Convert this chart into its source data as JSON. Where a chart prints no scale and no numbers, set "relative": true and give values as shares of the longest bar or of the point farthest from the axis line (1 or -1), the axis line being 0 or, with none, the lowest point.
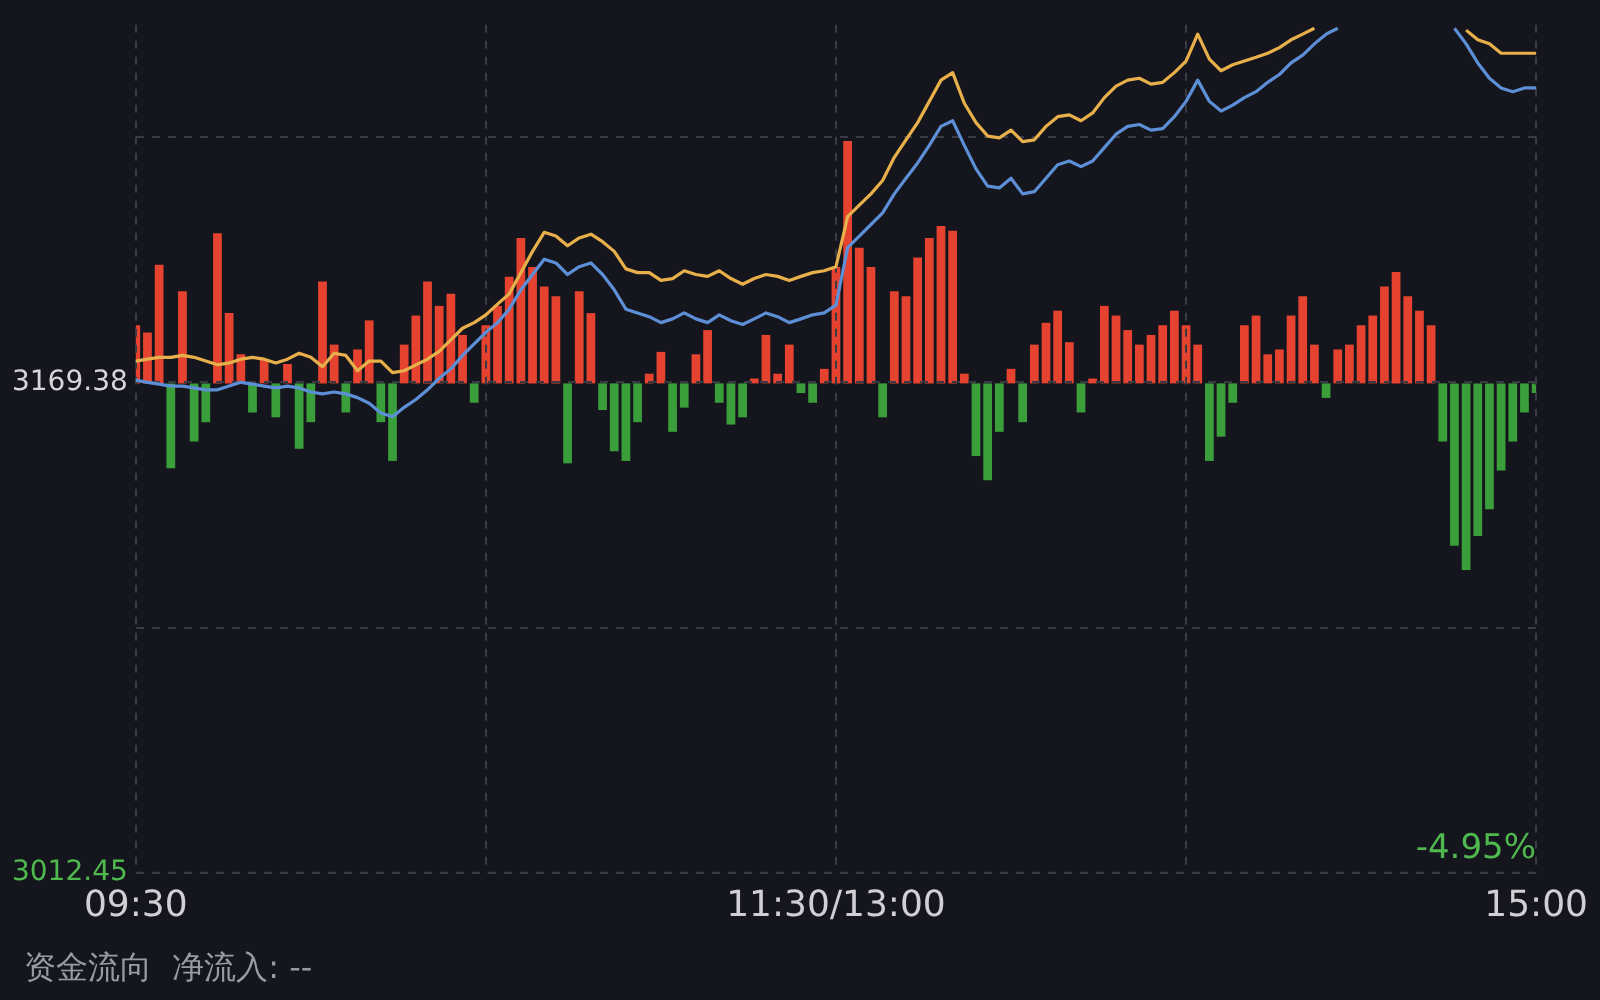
{
  "chart_data": [
    {
      "type": "line",
      "marker": "none",
      "grid": true,
      "categories": [
        "09:30",
        null,
        null,
        null,
        null,
        null,
        null,
        null,
        null,
        null,
        null,
        null,
        null,
        null,
        null,
        null,
        null,
        null,
        null,
        null,
        null,
        null,
        null,
        null,
        null,
        null,
        null,
        null,
        null,
        null,
        null,
        null,
        null,
        null,
        null,
        null,
        null,
        null,
        null,
        null,
        null,
        null,
        null,
        null,
        null,
        null,
        null,
        null,
        null,
        null,
        null,
        null,
        null,
        null,
        null,
        null,
        null,
        null,
        null,
        null,
        "11:30/13:00",
        null,
        null,
        null,
        null,
        null,
        null,
        null,
        null,
        null,
        null,
        null,
        null,
        null,
        null,
        null,
        null,
        null,
        null,
        null,
        null,
        null,
        null,
        null,
        null,
        null,
        null,
        null,
        null,
        null,
        null,
        null,
        null,
        null,
        null,
        null,
        null,
        null,
        null,
        null,
        null,
        null,
        null,
        null,
        null,
        null,
        null,
        null,
        null,
        null,
        null,
        null,
        null,
        null,
        null,
        null,
        null,
        null,
        null,
        null,
        "15:00"
      ],
      "ylim": [
        3012.45,
        3283.8
      ],
      "yticks": [
        3012.45,
        {
          "value": 3090.915,
          "label": null
        },
        3169.38,
        {
          "value": 3247.845,
          "label": null
        }
      ],
      "annotations": [
        "-4.95%",
        "资金流向  净流入: --"
      ],
      "series": [
        {
          "color": "#e8b04a",
          "values": [
            3176.2,
            3176.8,
            3177.4,
            3177.4,
            3178.0,
            3177.4,
            3176.2,
            3175.0,
            3175.6,
            3176.8,
            3177.4,
            3176.8,
            3175.6,
            3176.8,
            3178.7,
            3177.4,
            3174.4,
            3178.7,
            3178.0,
            3173.1,
            3176.2,
            3176.2,
            3172.5,
            3173.1,
            3175.0,
            3176.8,
            3179.3,
            3183.0,
            3186.7,
            3188.5,
            3191.0,
            3194.4,
            3197.7,
            3204.5,
            3211.3,
            3217.4,
            3216.2,
            3213.1,
            3215.6,
            3216.8,
            3214.4,
            3211.3,
            3205.7,
            3204.5,
            3204.5,
            3202.0,
            3202.6,
            3205.1,
            3203.9,
            3203.3,
            3205.1,
            3202.6,
            3200.8,
            3202.6,
            3203.9,
            3203.3,
            3202.0,
            3203.3,
            3204.5,
            3205.1,
            3206.4,
            3222.4,
            3226.1,
            3229.7,
            3234.0,
            3241.4,
            3247.0,
            3252.5,
            3259.3,
            3266.1,
            3268.5,
            3258.7,
            3252.5,
            3248.2,
            3247.6,
            3250.1,
            3246.4,
            3247.0,
            3251.3,
            3254.4,
            3255.0,
            3253.1,
            3255.6,
            3260.5,
            3264.2,
            3266.1,
            3266.7,
            3264.8,
            3265.4,
            3268.5,
            3272.2,
            3280.8,
            3272.8,
            3269.1,
            3271.0,
            3272.2,
            3273.4,
            3274.7,
            3276.5,
            3279.0,
            3280.8,
            3282.7,
            null,
            null,
            null,
            null,
            null,
            null,
            null,
            null,
            null,
            null,
            null,
            null,
            3282.1,
            3279.0,
            3277.7,
            3274.7,
            3274.7,
            3274.7,
            3274.7
          ]
        },
        {
          "color": "#5d8fd6",
          "values": [
            3170.1,
            3169.4,
            3168.8,
            3168.2,
            3168.2,
            3167.6,
            3167.0,
            3167.0,
            3168.2,
            3169.4,
            3168.8,
            3168.2,
            3167.6,
            3168.2,
            3167.6,
            3166.3,
            3165.7,
            3166.3,
            3165.7,
            3164.5,
            3162.7,
            3159.6,
            3158.4,
            3161.4,
            3163.9,
            3167.0,
            3170.7,
            3173.7,
            3178.0,
            3181.7,
            3185.4,
            3188.5,
            3192.8,
            3199.0,
            3203.9,
            3208.8,
            3207.6,
            3203.9,
            3206.4,
            3207.6,
            3203.9,
            3199.0,
            3192.8,
            3191.6,
            3190.4,
            3188.5,
            3189.7,
            3191.6,
            3189.7,
            3188.5,
            3191.0,
            3189.1,
            3187.9,
            3189.7,
            3191.6,
            3190.4,
            3188.5,
            3189.7,
            3191.0,
            3191.6,
            3194.1,
            3212.5,
            3216.2,
            3219.9,
            3223.6,
            3229.7,
            3234.7,
            3239.6,
            3245.2,
            3251.3,
            3253.1,
            3245.2,
            3237.7,
            3232.2,
            3231.6,
            3234.7,
            3229.7,
            3230.4,
            3234.7,
            3239.0,
            3240.2,
            3238.4,
            3240.2,
            3244.5,
            3248.8,
            3251.3,
            3251.9,
            3250.1,
            3250.6,
            3254.4,
            3259.3,
            3266.1,
            3259.3,
            3256.2,
            3258.1,
            3260.5,
            3262.4,
            3265.4,
            3267.9,
            3271.6,
            3274.1,
            3277.7,
            3280.8,
            3282.7,
            null,
            null,
            null,
            null,
            null,
            null,
            null,
            null,
            null,
            3282.7,
            3277.7,
            3271.6,
            3266.7,
            3263.6,
            3262.4,
            3263.6,
            3263.6
          ]
        }
      ]
    },
    {
      "type": "bar",
      "relative": true,
      "categories": [
        null,
        null,
        null,
        null,
        null,
        null,
        null,
        null,
        null,
        null,
        null,
        null,
        null,
        null,
        null,
        null,
        null,
        null,
        null,
        null,
        null,
        null,
        null,
        null,
        null,
        null,
        null,
        null,
        null,
        null,
        null,
        null,
        null,
        null,
        null,
        null,
        null,
        null,
        null,
        null,
        null,
        null,
        null,
        null,
        null,
        null,
        null,
        null,
        null,
        null,
        null,
        null,
        null,
        null,
        null,
        null,
        null,
        null,
        null,
        null,
        null,
        null,
        null,
        null,
        null,
        null,
        null,
        null,
        null,
        null,
        null,
        null,
        null,
        null,
        null,
        null,
        null,
        null,
        null,
        null,
        null,
        null,
        null,
        null,
        null,
        null,
        null,
        null,
        null,
        null,
        null,
        null,
        null,
        null,
        null,
        null,
        null,
        null,
        null,
        null,
        null,
        null,
        null,
        null,
        null,
        null,
        null,
        null,
        null,
        null,
        null,
        null,
        null,
        null,
        null,
        null,
        null,
        null,
        null,
        null,
        null
      ],
      "series": [
        {
          "color": "#e5432f",
          "values": [
            0.24,
            0.21,
            0.49,
            null,
            0.38,
            null,
            null,
            0.62,
            0.29,
            0.12,
            null,
            0.1,
            null,
            0.08,
            null,
            null,
            0.42,
            0.16,
            null,
            0.14,
            0.26,
            null,
            null,
            0.16,
            0.28,
            0.42,
            0.32,
            0.37,
            0.2,
            null,
            0.24,
            0.32,
            0.44,
            0.6,
            0.48,
            0.4,
            0.36,
            null,
            0.38,
            0.29,
            null,
            null,
            null,
            null,
            0.04,
            0.13,
            null,
            null,
            0.12,
            0.22,
            null,
            null,
            null,
            0.02,
            0.2,
            0.04,
            0.16,
            null,
            null,
            0.06,
            0.48,
            1,
            0.56,
            0.48,
            null,
            0.38,
            0.36,
            0.52,
            0.6,
            0.65,
            0.63,
            0.04,
            null,
            null,
            null,
            0.06,
            null,
            0.16,
            0.25,
            0.3,
            0.17,
            null,
            0.02,
            0.32,
            0.28,
            0.22,
            0.16,
            0.2,
            0.24,
            0.3,
            0.24,
            0.16,
            null,
            null,
            null,
            0.24,
            0.28,
            0.12,
            0.14,
            0.28,
            0.36,
            0.16,
            null,
            0.14,
            0.16,
            0.24,
            0.28,
            0.4,
            0.46,
            0.36,
            0.3,
            0.24,
            null,
            null,
            null,
            null,
            null,
            null,
            null,
            null,
            null
          ]
        },
        {
          "color": "#3a9e3a",
          "values": [
            null,
            null,
            null,
            -0.35,
            null,
            -0.24,
            -0.16,
            null,
            null,
            null,
            -0.12,
            null,
            -0.14,
            null,
            -0.27,
            -0.16,
            null,
            null,
            -0.12,
            null,
            null,
            -0.16,
            -0.32,
            null,
            null,
            null,
            null,
            null,
            null,
            -0.08,
            null,
            null,
            null,
            null,
            null,
            null,
            null,
            -0.33,
            null,
            null,
            -0.11,
            -0.28,
            -0.32,
            -0.16,
            null,
            null,
            -0.2,
            -0.1,
            null,
            null,
            -0.08,
            -0.17,
            -0.14,
            null,
            null,
            null,
            null,
            -0.04,
            -0.08,
            null,
            null,
            null,
            null,
            null,
            -0.14,
            null,
            null,
            null,
            null,
            null,
            null,
            null,
            -0.3,
            -0.4,
            -0.2,
            null,
            -0.16,
            null,
            null,
            null,
            null,
            -0.12,
            null,
            null,
            null,
            null,
            null,
            null,
            null,
            null,
            null,
            null,
            -0.32,
            -0.22,
            -0.08,
            null,
            null,
            null,
            null,
            null,
            null,
            null,
            -0.06,
            null,
            null,
            null,
            null,
            null,
            null,
            null,
            null,
            null,
            -0.24,
            -0.67,
            -0.77,
            -0.63,
            -0.52,
            -0.36,
            -0.24,
            -0.12,
            -0.04
          ]
        }
      ]
    }
  ]
}
